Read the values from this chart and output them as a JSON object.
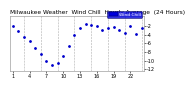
{
  "title": "Milwaukee Weather  Wind Chill  Hourly Average  (24 Hours)",
  "hours": [
    1,
    2,
    3,
    4,
    5,
    6,
    7,
    8,
    9,
    10,
    11,
    12,
    13,
    14,
    15,
    16,
    17,
    18,
    19,
    20,
    21,
    22,
    23,
    24
  ],
  "wind_chill": [
    -2.0,
    -3.0,
    -4.5,
    -5.5,
    -7.0,
    -8.5,
    -10.0,
    -11.0,
    -10.5,
    -9.0,
    -6.5,
    -4.0,
    -2.5,
    -1.5,
    -1.8,
    -2.0,
    -2.8,
    -2.5,
    -2.2,
    -2.8,
    -3.5,
    -2.0,
    -3.8,
    -2.5
  ],
  "dot_color": "#0000cc",
  "bg_color": "#ffffff",
  "plot_bg": "#ffffff",
  "grid_color": "#999999",
  "ylim": [
    -12.5,
    0.5
  ],
  "yticks": [
    -2,
    -4,
    -6,
    -8,
    -10,
    -12
  ],
  "ytick_labels": [
    "-2",
    "-4",
    "-6",
    "-8",
    "-10",
    "-12"
  ],
  "xtick_positions": [
    1,
    4,
    7,
    10,
    13,
    16,
    19,
    22
  ],
  "xtick_labels": [
    "1",
    "4",
    "7",
    "10",
    "13",
    "16",
    "19",
    "22"
  ],
  "legend_label": "Wind Chill",
  "legend_color": "#0000dd",
  "title_fontsize": 4.2,
  "tick_fontsize": 3.5
}
